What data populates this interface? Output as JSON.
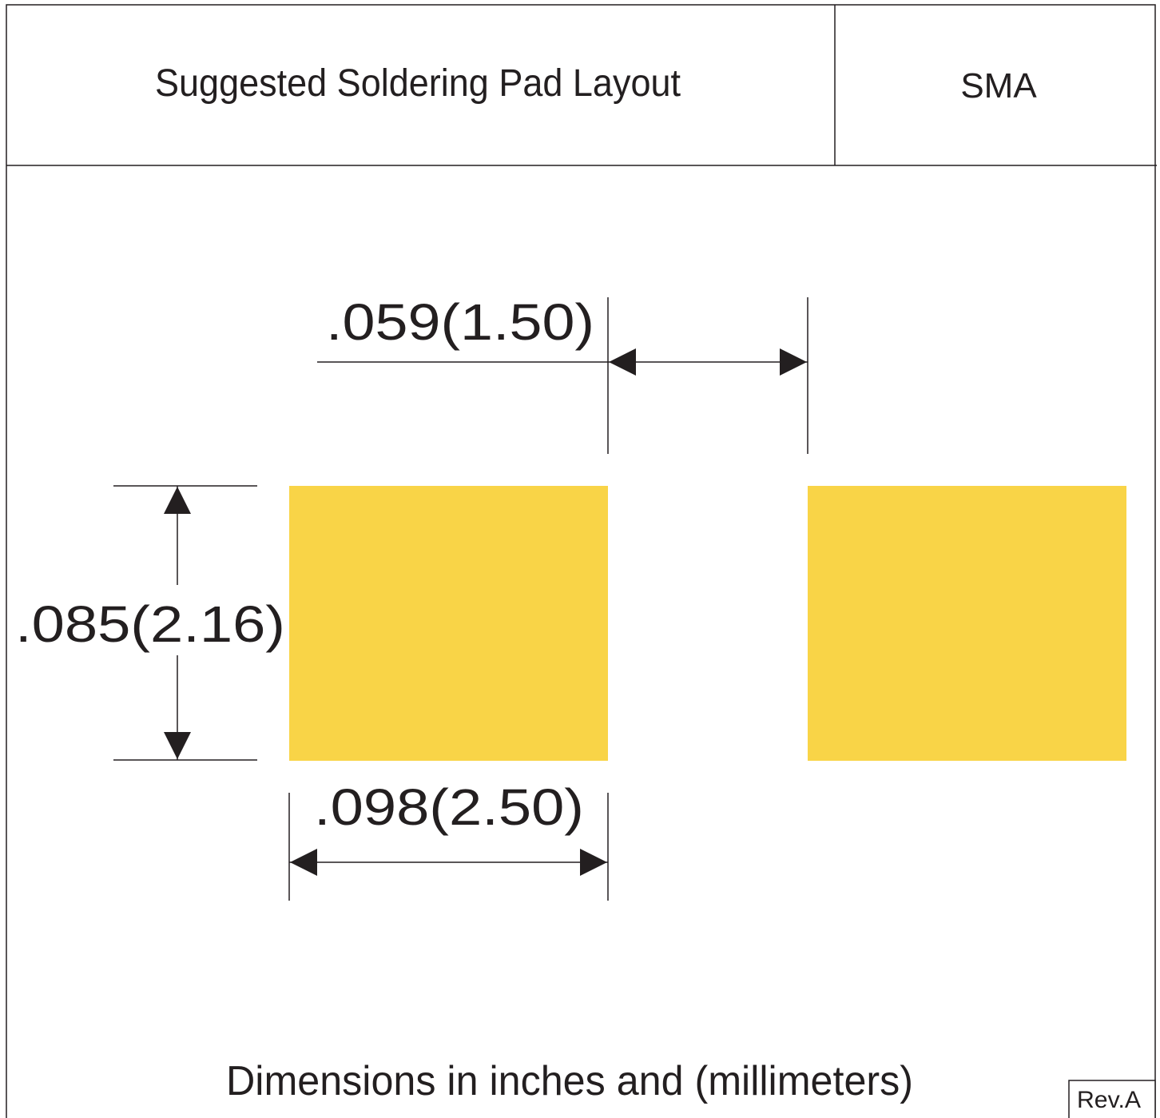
{
  "title_block": {
    "title": "Suggested Soldering Pad Layout",
    "package": "SMA"
  },
  "dimensions": {
    "gap": ".059(1.50)",
    "pad_height": ".085(2.16)",
    "pad_width": ".098(2.50)"
  },
  "footer": {
    "note": "Dimensions in inches and (millimeters)",
    "revision": "Rev.A"
  },
  "colors": {
    "pad": "#f9d447",
    "line": "#231f20"
  }
}
